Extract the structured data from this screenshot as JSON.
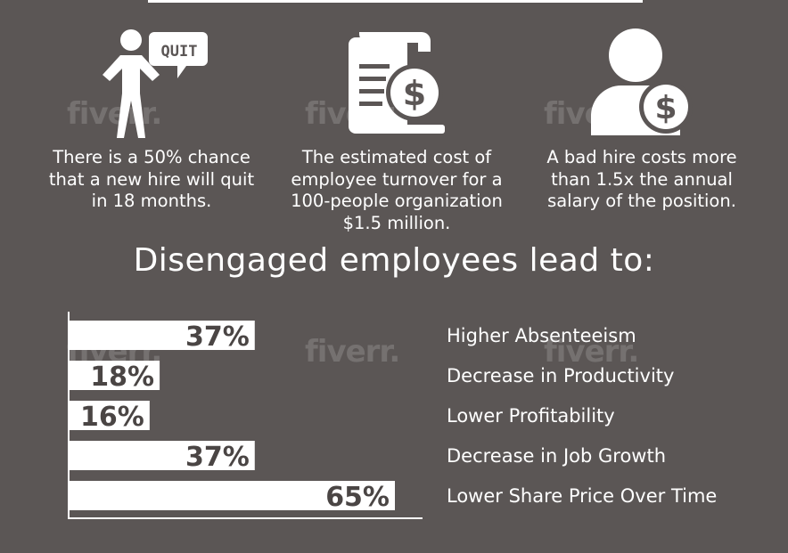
{
  "stats": [
    {
      "icon": "quit-person-icon",
      "badge": "QUIT",
      "text": "There is a 50% chance\nthat a new hire will quit\nin 18 months."
    },
    {
      "icon": "document-dollar-icon",
      "text": "The estimated cost of\nemployee turnover for a\n100-people organization\n$1.5 million."
    },
    {
      "icon": "person-dollar-icon",
      "text": "A bad hire costs more\nthan 1.5x the annual\nsalary of the position."
    }
  ],
  "headline": "Disengaged employees lead to:",
  "watermark": "fiverr.",
  "chart_data": {
    "type": "bar",
    "orientation": "horizontal",
    "categories": [
      "Higher Absenteeism",
      "Decrease in Productivity",
      "Lower Profitability",
      "Decrease in Job Growth",
      "Lower Share Price Over Time"
    ],
    "values": [
      37,
      18,
      16,
      37,
      65
    ],
    "data_labels": [
      "37%",
      "18%",
      "16%",
      "37%",
      "65%"
    ],
    "xlim": [
      0,
      65
    ],
    "bar_color": "#ffffff",
    "label_color": "#4a4544"
  }
}
